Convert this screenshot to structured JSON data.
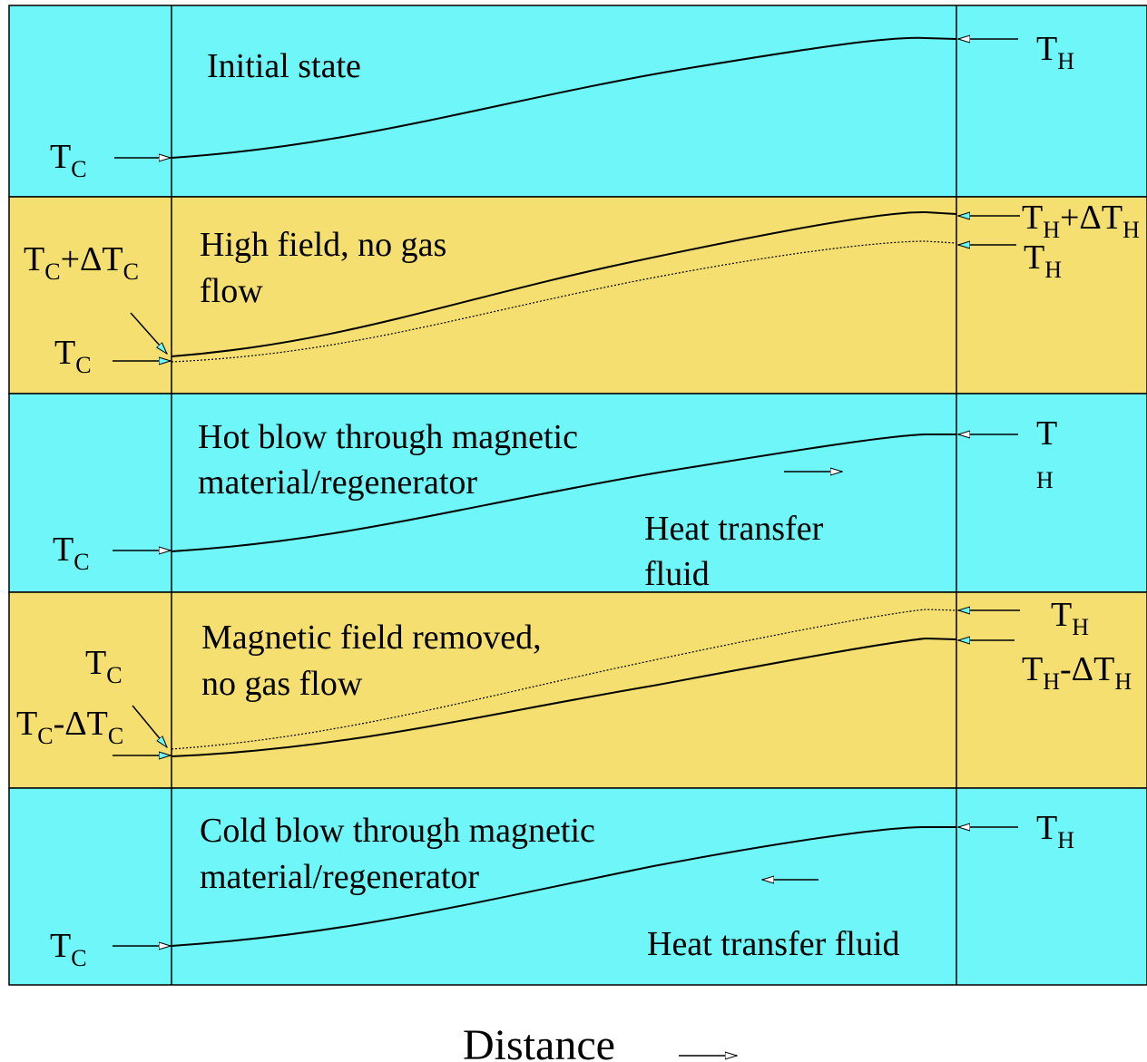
{
  "colors": {
    "cyan_band": "#6ff6f8",
    "yellow_band": "#f5df71",
    "line": "#000000",
    "arrowhead_fill": "#6ff6f8"
  },
  "panels": [
    {
      "fill": "cyan",
      "caption": [
        "Initial state"
      ],
      "left_labels": [
        {
          "base": "T",
          "sub": "C"
        }
      ],
      "right_labels": [
        {
          "base": "T",
          "sub": "H"
        }
      ]
    },
    {
      "fill": "yellow",
      "caption": [
        "High field, no gas",
        "flow"
      ],
      "left_labels": [
        {
          "base": "T",
          "sub": "C",
          "tail": "+ΔT",
          "tail_sub": "C"
        },
        {
          "base": "T",
          "sub": "C"
        }
      ],
      "right_labels": [
        {
          "base": "T",
          "sub": "H",
          "tail": "+ΔT",
          "tail_sub": "H"
        },
        {
          "base": "T",
          "sub": "H"
        }
      ]
    },
    {
      "fill": "cyan",
      "caption": [
        "Hot blow through magnetic",
        "material/regenerator"
      ],
      "fluid_label": [
        "Heat transfer",
        "fluid"
      ],
      "flow_direction": "right",
      "left_labels": [
        {
          "base": "T",
          "sub": "C"
        }
      ],
      "right_labels": [
        {
          "base": "T",
          "sub": "H"
        }
      ]
    },
    {
      "fill": "yellow",
      "caption": [
        "Magnetic field removed,",
        "no gas flow"
      ],
      "left_labels": [
        {
          "base": "T",
          "sub": "C"
        },
        {
          "base": "T",
          "sub": "C",
          "tail": "-ΔT",
          "tail_sub": "C"
        }
      ],
      "right_labels": [
        {
          "base": "T",
          "sub": "H"
        },
        {
          "base": "T",
          "sub": "H",
          "tail": "-ΔT",
          "tail_sub": "H"
        }
      ]
    },
    {
      "fill": "cyan",
      "caption": [
        "Cold blow through magnetic",
        "material/regenerator"
      ],
      "fluid_label": [
        "Heat transfer fluid"
      ],
      "flow_direction": "left",
      "left_labels": [
        {
          "base": "T",
          "sub": "C"
        }
      ],
      "right_labels": [
        {
          "base": "T",
          "sub": "H"
        }
      ]
    }
  ],
  "axis": {
    "label": "Distance",
    "direction": "right"
  }
}
